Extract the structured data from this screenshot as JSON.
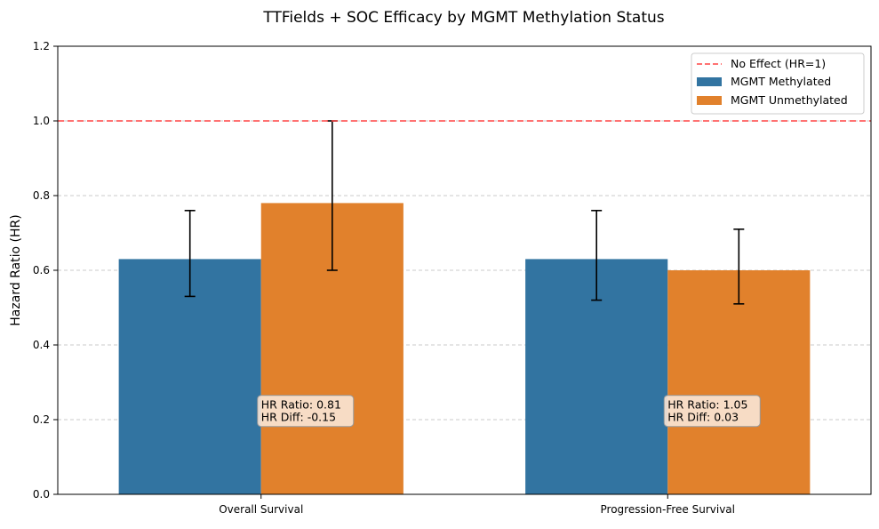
{
  "chart_data": {
    "type": "bar",
    "title": "TTFields + SOC Efficacy by MGMT Methylation Status",
    "xlabel": "",
    "ylabel": "Hazard Ratio (HR)",
    "ylim": [
      0,
      1.2
    ],
    "yticks": [
      "0.0",
      "0.2",
      "0.4",
      "0.6",
      "0.8",
      "1.0",
      "1.2"
    ],
    "categories": [
      "Overall Survival",
      "Progression-Free Survival"
    ],
    "series": [
      {
        "name": "MGMT Methylated",
        "color": "#3274a1",
        "values": [
          0.63,
          0.63
        ],
        "ci_low": [
          0.53,
          0.52
        ],
        "ci_high": [
          0.76,
          0.76
        ]
      },
      {
        "name": "MGMT Unmethylated",
        "color": "#e1812c",
        "values": [
          0.78,
          0.6
        ],
        "ci_low": [
          0.6,
          0.51
        ],
        "ci_high": [
          1.0,
          0.71
        ]
      }
    ],
    "reference_line": {
      "name": "No Effect (HR=1)",
      "value": 1.0,
      "color": "#ff4444",
      "style": "dashed"
    },
    "annotations": [
      {
        "category": "Overall Survival",
        "lines": [
          "HR Ratio: 0.81",
          "HR Diff: -0.15"
        ]
      },
      {
        "category": "Progression-Free Survival",
        "lines": [
          "HR Ratio: 1.05",
          "HR Diff: 0.03"
        ]
      }
    ],
    "grid": {
      "y": true,
      "style": "dashed",
      "color": "#bbbbbb"
    },
    "legend": {
      "placement": "top-right"
    }
  }
}
